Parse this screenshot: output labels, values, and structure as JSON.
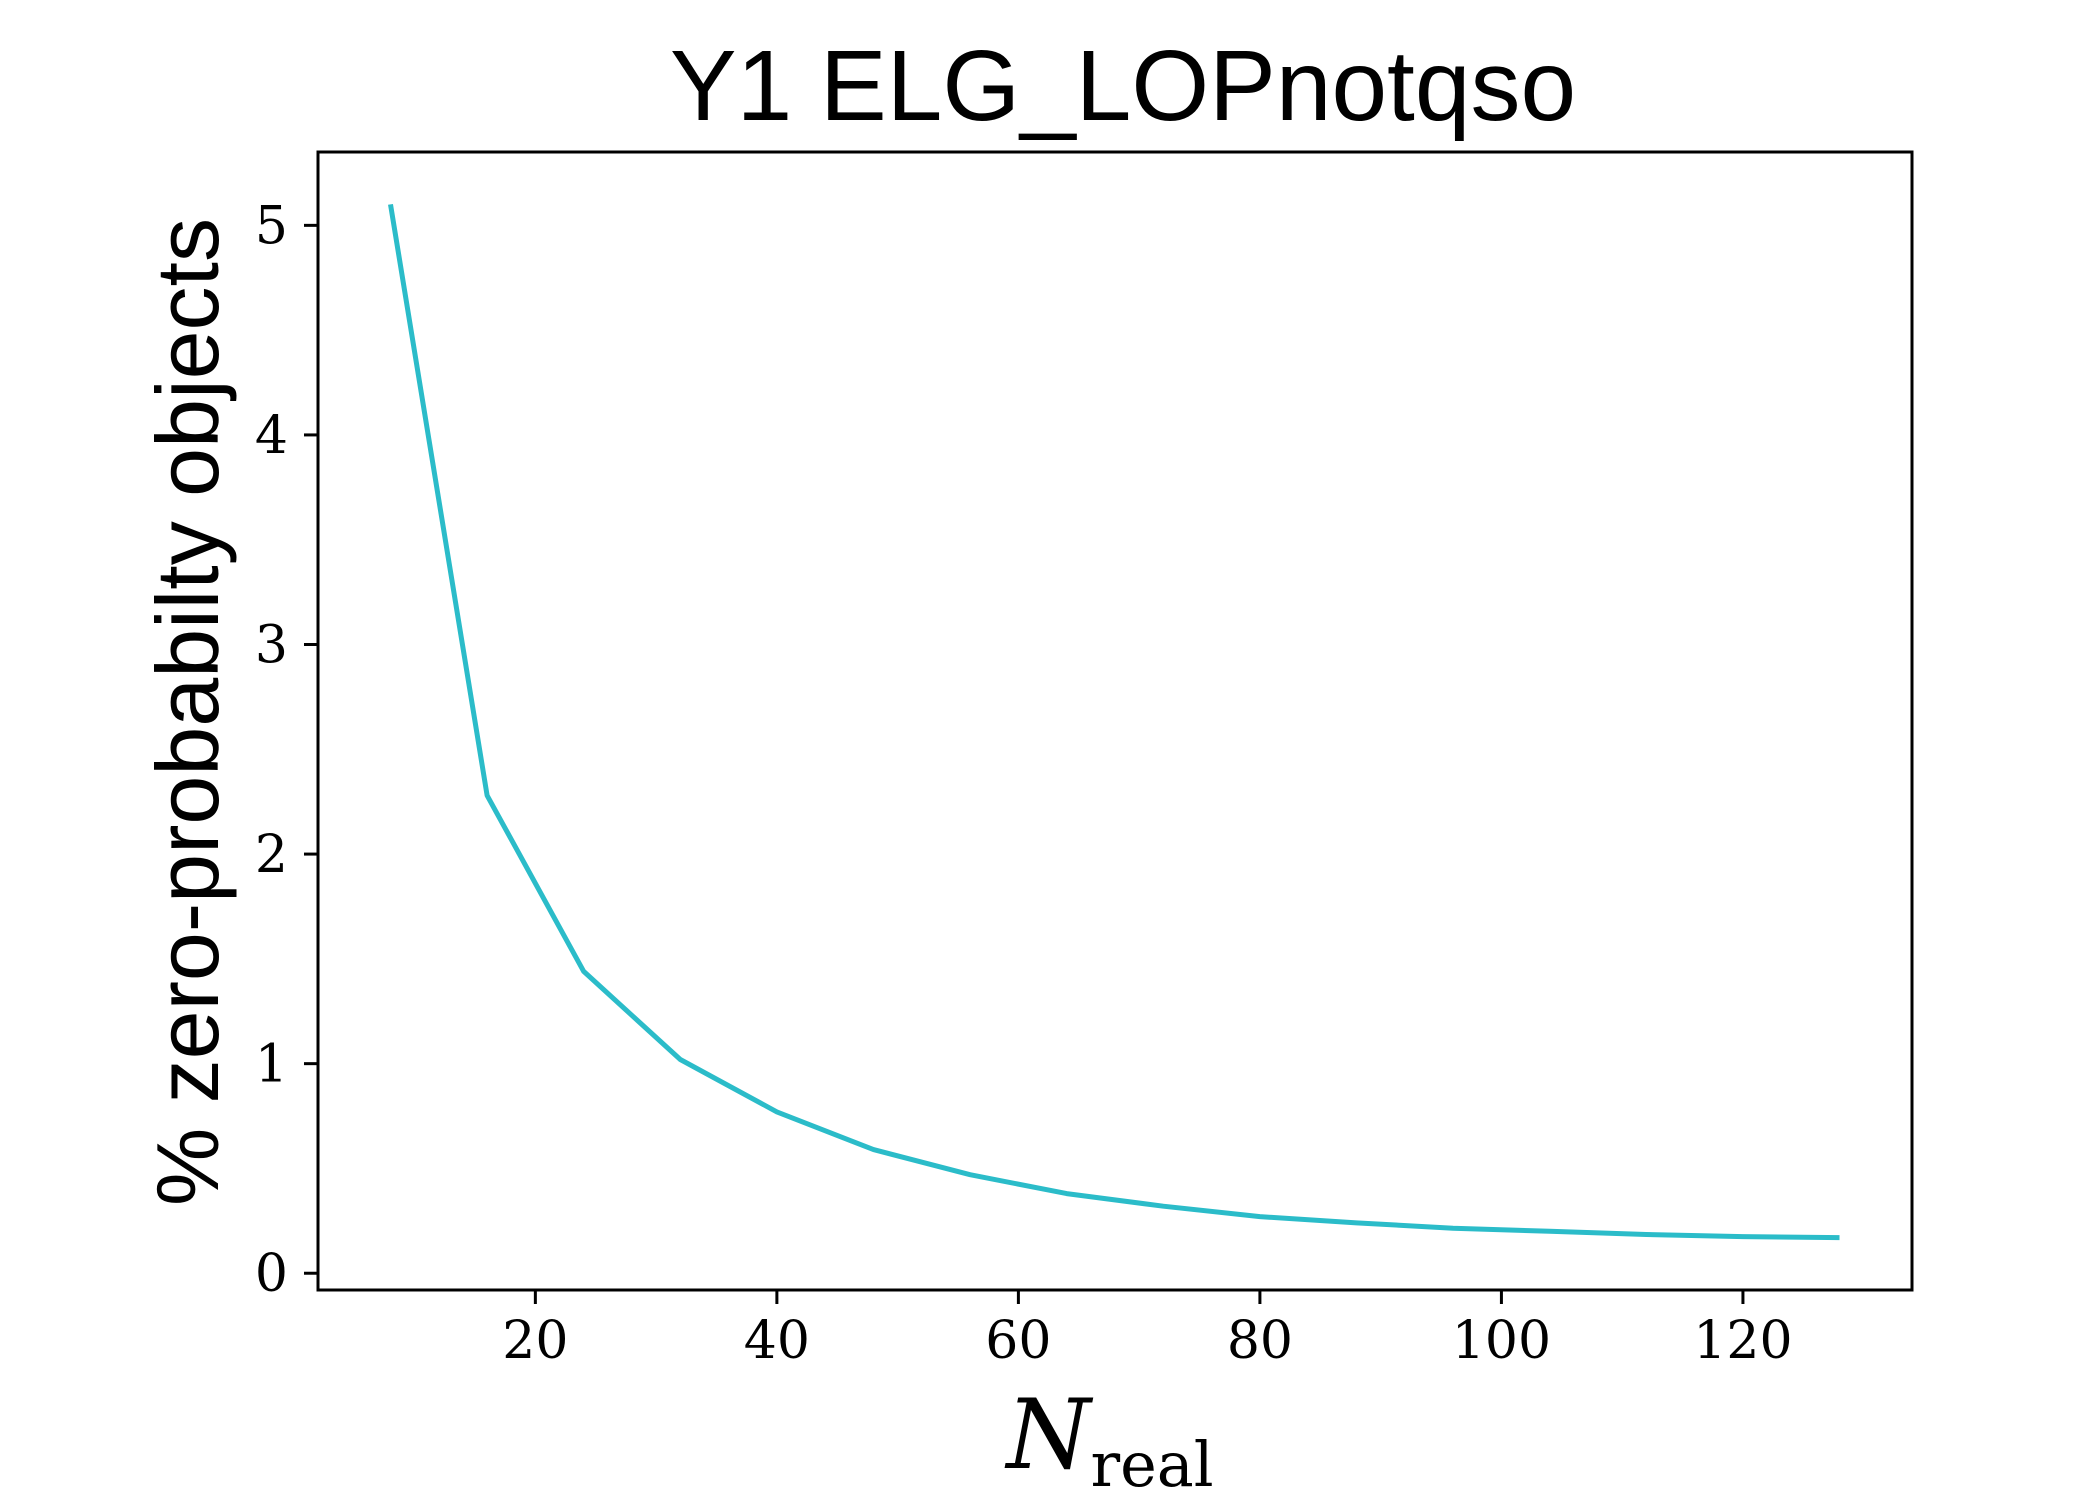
{
  "chart_data": {
    "type": "line",
    "title": "Y1 ELG_LOPnotqso",
    "xlabel": {
      "main": "N",
      "subscript": "real"
    },
    "ylabel": "% zero-probabilty objects",
    "xlim": [
      2,
      134
    ],
    "ylim": [
      -0.08,
      5.35
    ],
    "xticks": [
      20,
      40,
      60,
      80,
      100,
      120
    ],
    "yticks": [
      0,
      1,
      2,
      3,
      4,
      5
    ],
    "grid": false,
    "legend": "none",
    "series": [
      {
        "color": "#2bbcc9",
        "x": [
          8,
          16,
          24,
          32,
          40,
          48,
          56,
          64,
          72,
          80,
          88,
          96,
          104,
          112,
          120,
          128
        ],
        "y": [
          5.1,
          2.28,
          1.44,
          1.02,
          0.77,
          0.59,
          0.47,
          0.38,
          0.32,
          0.27,
          0.24,
          0.215,
          0.2,
          0.185,
          0.175,
          0.17
        ]
      }
    ]
  }
}
